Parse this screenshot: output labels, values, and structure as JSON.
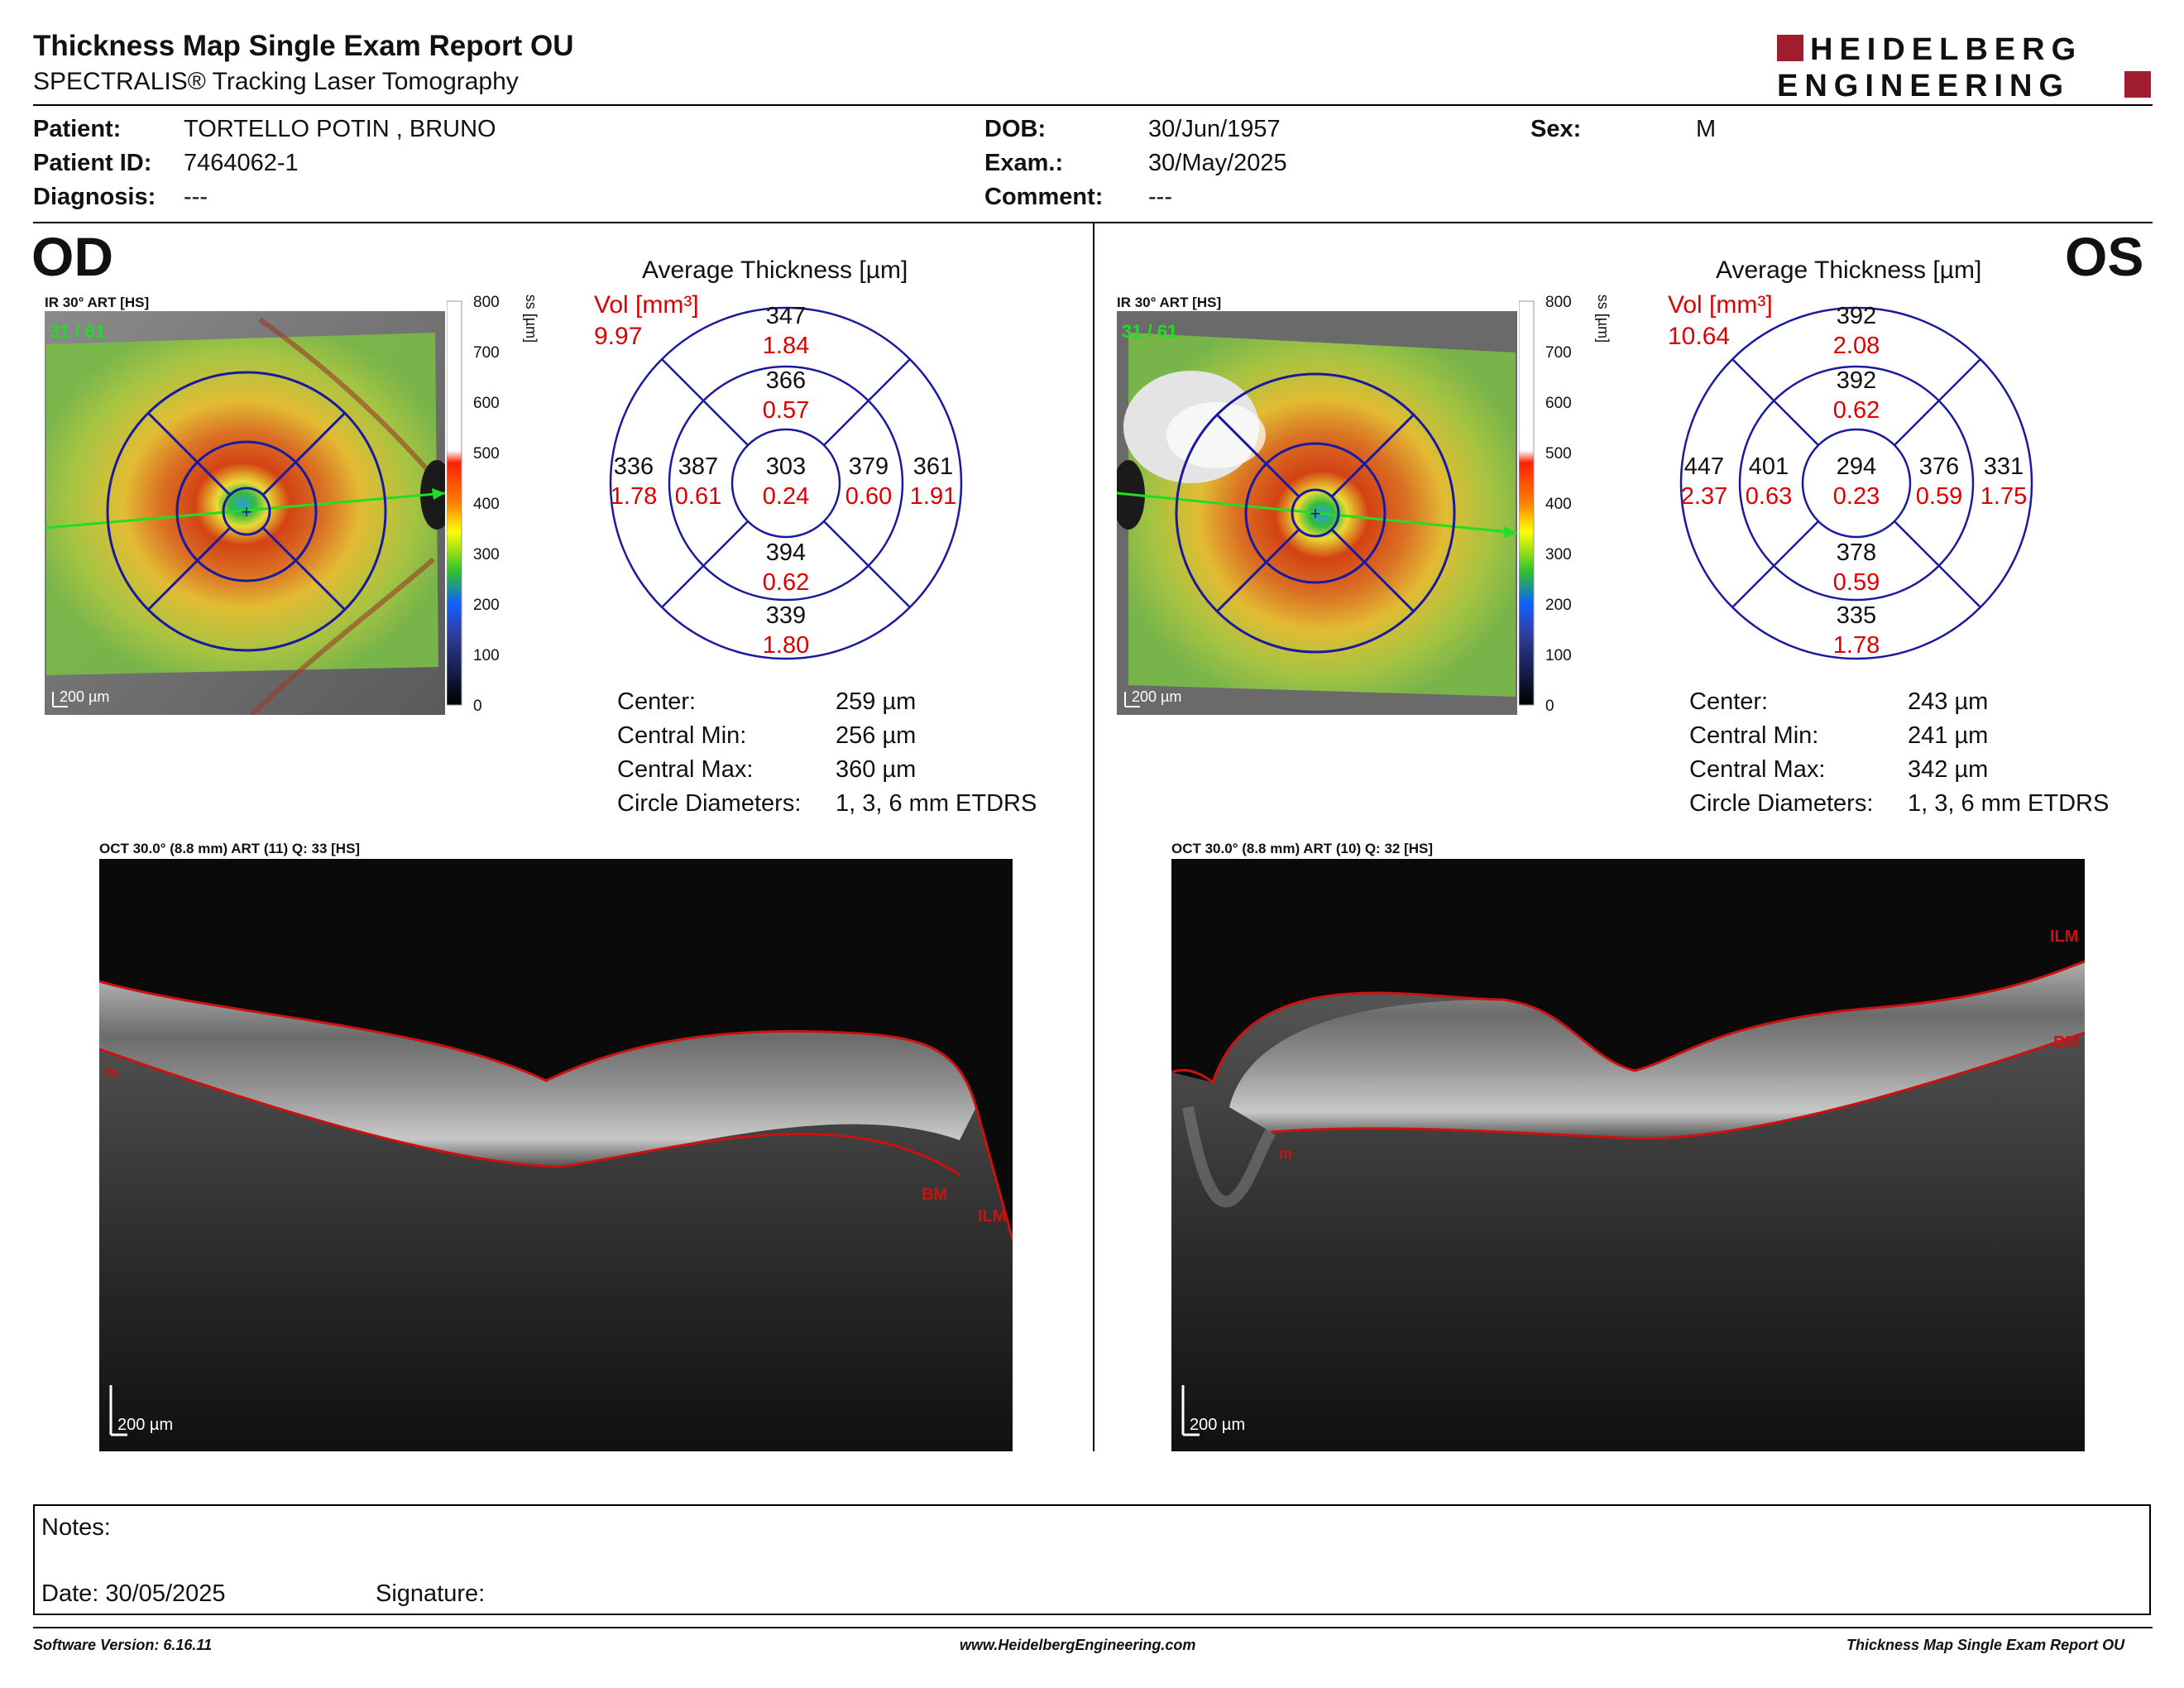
{
  "report": {
    "title": "Thickness Map Single Exam Report OU",
    "subtitle": "SPECTRALIS® Tracking Laser Tomography",
    "logo": {
      "line1": "HEIDELBERG",
      "line2": "ENGINEERING",
      "accent": "#a01e2d"
    }
  },
  "patient": {
    "name_label": "Patient:",
    "name": "TORTELLO POTIN , BRUNO",
    "id_label": "Patient ID:",
    "id": "7464062-1",
    "diagnosis_label": "Diagnosis:",
    "diagnosis": "---",
    "dob_label": "DOB:",
    "dob": "30/Jun/1957",
    "exam_label": "Exam.:",
    "exam": "30/May/2025",
    "comment_label": "Comment:",
    "comment": "---",
    "sex_label": "Sex:",
    "sex": "M"
  },
  "colors": {
    "vol_red": "#dd0000",
    "grid_blue": "#1a1aa0",
    "marker_green": "#22dd22"
  },
  "scale": {
    "ticks": [
      "800",
      "700",
      "600",
      "500",
      "400",
      "300",
      "200",
      "100",
      "0"
    ],
    "title": "Retina Thickness [µm]"
  },
  "eyes": [
    {
      "side": "OD",
      "fundus_label": "IR 30° ART [HS]",
      "frame": "31 / 61",
      "scalebar": "200 µm",
      "circle_title": "Average Thickness [µm]",
      "vol_label": "Vol [mm³]",
      "vol_total": "9.97",
      "sectors": {
        "outer_top": {
          "t": "347",
          "v": "1.84"
        },
        "inner_top": {
          "t": "366",
          "v": "0.57"
        },
        "outer_left": {
          "t": "336",
          "v": "1.78"
        },
        "inner_left": {
          "t": "387",
          "v": "0.61"
        },
        "center": {
          "t": "303",
          "v": "0.24"
        },
        "inner_right": {
          "t": "379",
          "v": "0.60"
        },
        "outer_right": {
          "t": "361",
          "v": "1.91"
        },
        "inner_bottom": {
          "t": "394",
          "v": "0.62"
        },
        "outer_bottom": {
          "t": "339",
          "v": "1.80"
        }
      },
      "stats": [
        {
          "label": "Center:",
          "value": "259 µm"
        },
        {
          "label": "Central Min:",
          "value": "256 µm"
        },
        {
          "label": "Central Max:",
          "value": "360 µm"
        },
        {
          "label": "Circle Diameters:",
          "value": "1, 3, 6 mm ETDRS"
        }
      ],
      "oct_label": "OCT 30.0° (8.8 mm) ART (11) Q: 33 [HS]",
      "oct_scalebar": "200 µm",
      "layers": {
        "ilm": "ILM",
        "bm": "BM",
        "bm_short": "m"
      }
    },
    {
      "side": "OS",
      "fundus_label": "IR 30° ART [HS]",
      "frame": "31 / 61",
      "scalebar": "200 µm",
      "circle_title": "Average Thickness [µm]",
      "vol_label": "Vol [mm³]",
      "vol_total": "10.64",
      "sectors": {
        "outer_top": {
          "t": "392",
          "v": "2.08"
        },
        "inner_top": {
          "t": "392",
          "v": "0.62"
        },
        "outer_left": {
          "t": "447",
          "v": "2.37"
        },
        "inner_left": {
          "t": "401",
          "v": "0.63"
        },
        "center": {
          "t": "294",
          "v": "0.23"
        },
        "inner_right": {
          "t": "376",
          "v": "0.59"
        },
        "outer_right": {
          "t": "331",
          "v": "1.75"
        },
        "inner_bottom": {
          "t": "378",
          "v": "0.59"
        },
        "outer_bottom": {
          "t": "335",
          "v": "1.78"
        }
      },
      "stats": [
        {
          "label": "Center:",
          "value": "243 µm"
        },
        {
          "label": "Central Min:",
          "value": "241 µm"
        },
        {
          "label": "Central Max:",
          "value": "342 µm"
        },
        {
          "label": "Circle Diameters:",
          "value": "1, 3, 6 mm ETDRS"
        }
      ],
      "oct_label": "OCT 30.0° (8.8 mm) ART (10) Q: 32 [HS]",
      "oct_scalebar": "200 µm",
      "layers": {
        "ilm": "ILM",
        "bm": "BM",
        "bm_short": "m"
      }
    }
  ],
  "notes": {
    "notes_label": "Notes:",
    "date_label": "Date: 30/05/2025",
    "signature_label": "Signature:"
  },
  "footer": {
    "version": "Software Version: 6.16.11",
    "website": "www.HeidelbergEngineering.com",
    "report_name": "Thickness Map Single Exam Report OU"
  }
}
